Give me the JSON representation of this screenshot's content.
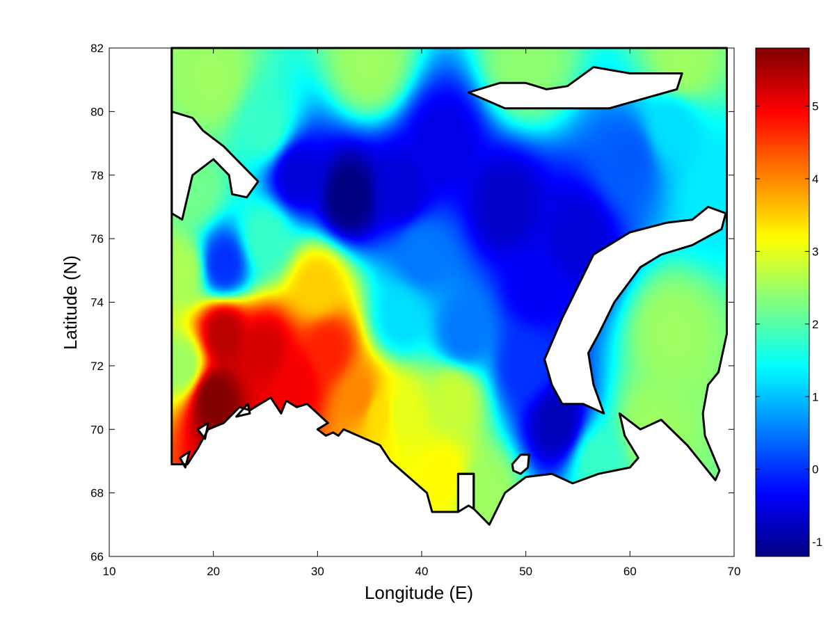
{
  "chart_data": {
    "type": "heatmap",
    "title": "",
    "xlabel": "Longitude (E)",
    "ylabel": "Latitude (N)",
    "xlim": [
      10,
      70
    ],
    "ylim": [
      66,
      82
    ],
    "xticks": [
      10,
      20,
      30,
      40,
      50,
      60,
      70
    ],
    "yticks": [
      66,
      68,
      70,
      72,
      74,
      76,
      78,
      80,
      82
    ],
    "colorbar": {
      "colormap": "jet",
      "range": [
        -1.2,
        5.8
      ],
      "ticks": [
        -1,
        0,
        1,
        2,
        3,
        4,
        5
      ]
    },
    "grid": false,
    "field_samples": [
      {
        "lon": 20,
        "lat": 71,
        "value": 5.8
      },
      {
        "lon": 21,
        "lat": 73,
        "value": 5.4
      },
      {
        "lon": 25,
        "lat": 72.5,
        "value": 5.2
      },
      {
        "lon": 28,
        "lat": 71.5,
        "value": 5.0
      },
      {
        "lon": 31,
        "lat": 72.5,
        "value": 4.7
      },
      {
        "lon": 34,
        "lat": 71,
        "value": 4.0
      },
      {
        "lon": 36,
        "lat": 70.5,
        "value": 3.4
      },
      {
        "lon": 42,
        "lat": 68.5,
        "value": 3.2
      },
      {
        "lon": 30,
        "lat": 74.5,
        "value": 3.5
      },
      {
        "lon": 33,
        "lat": 77.3,
        "value": -1.2
      },
      {
        "lon": 28,
        "lat": 78,
        "value": -0.6
      },
      {
        "lon": 38,
        "lat": 77.5,
        "value": -0.6
      },
      {
        "lon": 42,
        "lat": 79,
        "value": -0.5
      },
      {
        "lon": 48,
        "lat": 77,
        "value": -0.7
      },
      {
        "lon": 55,
        "lat": 76,
        "value": -0.6
      },
      {
        "lon": 51,
        "lat": 74.5,
        "value": -0.4
      },
      {
        "lon": 53,
        "lat": 70.2,
        "value": -0.8
      },
      {
        "lon": 50,
        "lat": 72,
        "value": 0.0
      },
      {
        "lon": 44,
        "lat": 73,
        "value": 0.5
      },
      {
        "lon": 21,
        "lat": 75.2,
        "value": 0.0
      },
      {
        "lon": 38,
        "lat": 73.5,
        "value": 1.2
      },
      {
        "lon": 40,
        "lat": 75.5,
        "value": 0.5
      },
      {
        "lon": 60,
        "lat": 78.5,
        "value": 0.3
      },
      {
        "lon": 64,
        "lat": 79.5,
        "value": 1.2
      },
      {
        "lon": 18,
        "lat": 77.5,
        "value": 2.2
      },
      {
        "lon": 20,
        "lat": 81,
        "value": 2.5
      },
      {
        "lon": 35,
        "lat": 81.5,
        "value": 2.5
      },
      {
        "lon": 50,
        "lat": 81.5,
        "value": 2.4
      },
      {
        "lon": 65,
        "lat": 81.5,
        "value": 2.5
      },
      {
        "lon": 68,
        "lat": 77.5,
        "value": 1.3
      },
      {
        "lon": 64,
        "lat": 73,
        "value": 2.5
      },
      {
        "lon": 62,
        "lat": 70,
        "value": 2.5
      },
      {
        "lon": 57,
        "lat": 69,
        "value": 1.8
      },
      {
        "lon": 46,
        "lat": 68,
        "value": 2.5
      },
      {
        "lon": 17,
        "lat": 72,
        "value": 2.5
      },
      {
        "lon": 17,
        "lat": 75,
        "value": 2.6
      },
      {
        "lon": 25,
        "lat": 76,
        "value": 1.8
      },
      {
        "lon": 25,
        "lat": 79.5,
        "value": 1.8
      },
      {
        "lon": 43,
        "lat": 71,
        "value": 2.8
      },
      {
        "lon": 38,
        "lat": 70.5,
        "value": 3.0
      }
    ]
  },
  "style": {
    "coast_color": "#000000",
    "background": "#ffffff"
  }
}
